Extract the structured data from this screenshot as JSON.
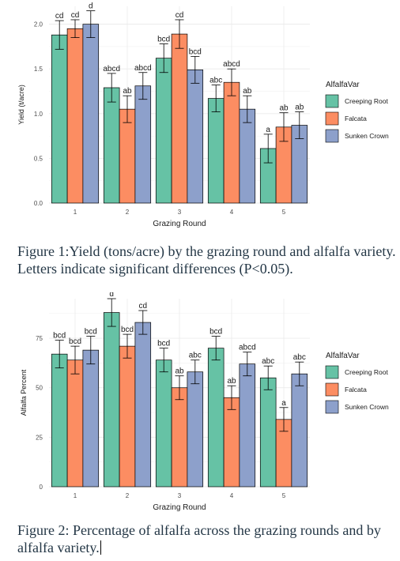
{
  "chart_data": [
    {
      "type": "bar",
      "xlabel": "Grazing Round",
      "ylabel": "Yield (t/acre)",
      "categories": [
        "1",
        "2",
        "3",
        "4",
        "5"
      ],
      "ylim": [
        0,
        2.2
      ],
      "yticks": [
        "0.0",
        "0.5",
        "1.0",
        "1.5",
        "2.0"
      ],
      "ytick_values": [
        0,
        0.5,
        1.0,
        1.5,
        2.0
      ],
      "grid": true,
      "legend": {
        "title": "AlfalfaVar",
        "placement": "right"
      },
      "series": [
        {
          "name": "Creeping Root",
          "color": "#66c2a5",
          "values": [
            1.88,
            1.29,
            1.62,
            1.17,
            0.61
          ],
          "err": [
            0.16,
            0.16,
            0.16,
            0.15,
            0.16
          ],
          "letters": [
            "cd",
            "abcd",
            "bcd",
            "abc",
            "a"
          ]
        },
        {
          "name": "Falcata",
          "color": "#fc8d62",
          "values": [
            1.95,
            1.05,
            1.89,
            1.35,
            0.85
          ],
          "err": [
            0.1,
            0.15,
            0.16,
            0.15,
            0.16
          ],
          "letters": [
            "cd",
            "ab",
            "cd",
            "abcd",
            "ab"
          ]
        },
        {
          "name": "Sunken Crown",
          "color": "#8da0cb",
          "values": [
            2.0,
            1.31,
            1.49,
            1.05,
            0.87
          ],
          "err": [
            0.15,
            0.15,
            0.15,
            0.15,
            0.15
          ],
          "letters": [
            "d",
            "abcd",
            "bcd",
            "ab",
            "ab"
          ]
        }
      ]
    },
    {
      "type": "bar",
      "xlabel": "Grazing Round",
      "ylabel": "Alfalfa Percent",
      "categories": [
        "1",
        "2",
        "3",
        "4",
        "5"
      ],
      "ylim": [
        0,
        95
      ],
      "yticks": [
        "0",
        "25",
        "50",
        "75"
      ],
      "ytick_values": [
        0,
        25,
        50,
        75
      ],
      "grid": true,
      "legend": {
        "title": "AlfalfaVar",
        "placement": "right"
      },
      "series": [
        {
          "name": "Creeping Root",
          "color": "#66c2a5",
          "values": [
            67,
            88,
            64,
            70,
            55
          ],
          "err": [
            7,
            7,
            6,
            6,
            6
          ],
          "letters": [
            "bcd",
            "d",
            "bcd",
            "bcd",
            "abc"
          ]
        },
        {
          "name": "Falcata",
          "color": "#fc8d62",
          "values": [
            64,
            71,
            50,
            45,
            34
          ],
          "err": [
            7,
            6,
            6,
            6,
            6
          ],
          "letters": [
            "bcd",
            "bcd",
            "ab",
            "ab",
            "a"
          ]
        },
        {
          "name": "Sunken Crown",
          "color": "#8da0cb",
          "values": [
            69,
            83,
            58,
            62,
            57
          ],
          "err": [
            7,
            6,
            6,
            6,
            6
          ],
          "letters": [
            "bcd",
            "cd",
            "abc",
            "abcd",
            "abc"
          ]
        }
      ]
    }
  ],
  "captions": {
    "figure1": "Figure 1:Yield (tons/acre) by the grazing round and alfalfa variety. Letters indicate significant differences (P<0.05).",
    "figure2": "Figure 2: Percentage of alfalfa across the grazing rounds and by alfalfa variety."
  }
}
